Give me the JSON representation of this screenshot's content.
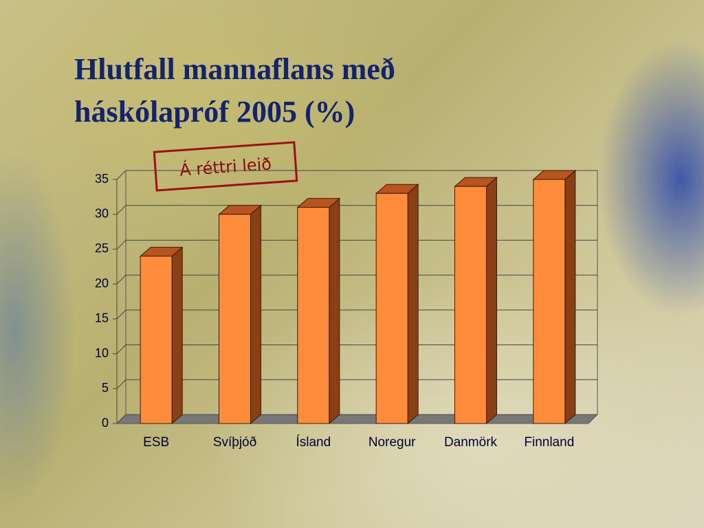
{
  "chart_data": {
    "type": "bar3d",
    "title": [
      "Hlutfall mannaflans með",
      "háskólapróf 2005 (%)"
    ],
    "annotation": "Á réttri leið",
    "categories": [
      "ESB",
      "Svíþjóð",
      "Ísland",
      "Noregur",
      "Danmörk",
      "Finnland"
    ],
    "values": [
      24,
      30,
      31,
      33,
      34,
      35
    ],
    "color": "#ff8c3a",
    "ylim": [
      0,
      35
    ],
    "yticks": [
      0,
      5,
      10,
      15,
      20,
      25,
      30,
      35
    ],
    "grid": true
  }
}
